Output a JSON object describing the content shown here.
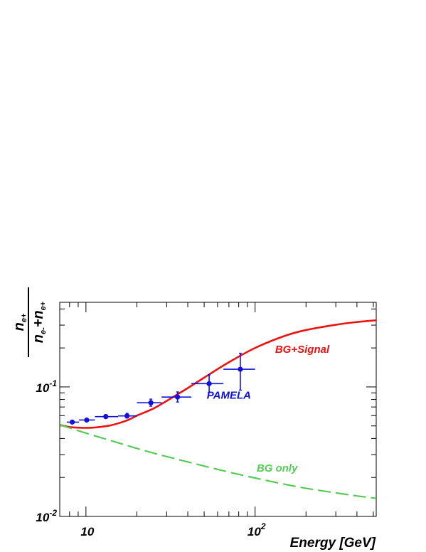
{
  "chart_data": {
    "type": "line",
    "xlabel": "Energy [GeV]",
    "ylabel": {
      "numerator": "n",
      "numerator_sub": "e+",
      "denominator_a": "n",
      "denominator_a_sub": "e-",
      "plus": "+",
      "denominator_b": "n",
      "denominator_b_sub": "e+"
    },
    "x_scale": "log",
    "y_scale": "log",
    "xlim": [
      7,
      520
    ],
    "ylim": [
      0.01,
      0.45
    ],
    "x_tick_labels": [
      {
        "value": 10,
        "base": "10",
        "exp": ""
      },
      {
        "value": 100,
        "base": "10",
        "exp": "2"
      }
    ],
    "y_tick_labels": [
      {
        "value": 0.01,
        "base": "10",
        "exp": "-2"
      },
      {
        "value": 0.1,
        "base": "10",
        "exp": "-1"
      }
    ],
    "grid": false,
    "series": [
      {
        "name": "BG+Signal",
        "color": "#ee1111",
        "style": "solid",
        "x": [
          7,
          8,
          9,
          10,
          11,
          12,
          14,
          16,
          18,
          20,
          25,
          30,
          40,
          50,
          70,
          100,
          150,
          200,
          300,
          400,
          520
        ],
        "y": [
          0.051,
          0.049,
          0.0485,
          0.0483,
          0.0485,
          0.049,
          0.0505,
          0.053,
          0.056,
          0.06,
          0.068,
          0.078,
          0.098,
          0.118,
          0.155,
          0.2,
          0.248,
          0.275,
          0.302,
          0.317,
          0.327
        ]
      },
      {
        "name": "BG only",
        "color": "#55cc55",
        "style": "dashed",
        "x": [
          7,
          10,
          15,
          20,
          30,
          50,
          70,
          100,
          150,
          200,
          300,
          400,
          520
        ],
        "y": [
          0.051,
          0.044,
          0.0375,
          0.0335,
          0.029,
          0.0245,
          0.022,
          0.0198,
          0.0177,
          0.0165,
          0.0152,
          0.0144,
          0.0138
        ]
      },
      {
        "name": "PAMELA",
        "color": "#1111dd",
        "style": "points",
        "points": [
          {
            "x": 8.3,
            "y": 0.0535,
            "xlo": 7.7,
            "xhi": 9.1,
            "ylo": 0.0523,
            "yhi": 0.0548
          },
          {
            "x": 10.1,
            "y": 0.0555,
            "xlo": 9.1,
            "xhi": 11.3,
            "ylo": 0.054,
            "yhi": 0.057
          },
          {
            "x": 13.1,
            "y": 0.059,
            "xlo": 11.3,
            "xhi": 15.5,
            "ylo": 0.0575,
            "yhi": 0.061
          },
          {
            "x": 17.5,
            "y": 0.0597,
            "xlo": 15.5,
            "xhi": 20.0,
            "ylo": 0.0575,
            "yhi": 0.0625
          },
          {
            "x": 24.2,
            "y": 0.0755,
            "xlo": 20.0,
            "xhi": 28.0,
            "ylo": 0.071,
            "yhi": 0.0805
          },
          {
            "x": 34.8,
            "y": 0.0835,
            "xlo": 28.0,
            "xhi": 42.0,
            "ylo": 0.0765,
            "yhi": 0.0915
          },
          {
            "x": 53.5,
            "y": 0.106,
            "xlo": 42.0,
            "xhi": 65.0,
            "ylo": 0.0905,
            "yhi": 0.124
          },
          {
            "x": 81.8,
            "y": 0.137,
            "xlo": 65.0,
            "xhi": 100.0,
            "ylo": 0.0945,
            "yhi": 0.182
          }
        ]
      }
    ],
    "annotations": [
      {
        "text": "BG+Signal",
        "x": 190,
        "y": 0.183,
        "color": "#ee1111"
      },
      {
        "text": "PAMELA",
        "x": 70,
        "y": 0.081,
        "color": "#1111dd"
      },
      {
        "text": "BG only",
        "x": 135,
        "y": 0.0222,
        "color": "#55cc55"
      }
    ]
  }
}
